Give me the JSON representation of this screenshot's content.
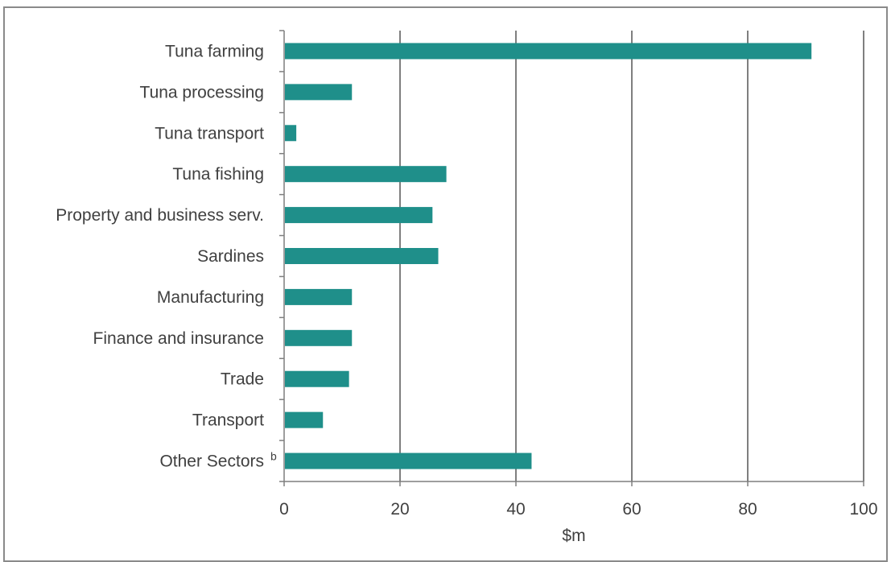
{
  "chart_data": {
    "type": "bar",
    "orientation": "horizontal",
    "categories": [
      "Tuna farming",
      "Tuna processing",
      "Tuna transport",
      "Tuna fishing",
      "Property and business serv.",
      "Sardines",
      "Manufacturing",
      "Finance and insurance",
      "Trade",
      "Transport",
      "Other Sectors"
    ],
    "category_superscripts": [
      "",
      "",
      "",
      "",
      "",
      "",
      "",
      "",
      "",
      "",
      "b"
    ],
    "values": [
      91,
      11.7,
      2.1,
      28,
      25.6,
      26.6,
      11.7,
      11.7,
      11.2,
      6.7,
      42.7
    ],
    "xlabel": "$m",
    "xlim": [
      0,
      100
    ],
    "xticks": [
      0,
      20,
      40,
      60,
      80,
      100
    ],
    "grid": "vertical",
    "bar_color": "#1f8f8a",
    "grid_color": "#7f7f7f"
  }
}
